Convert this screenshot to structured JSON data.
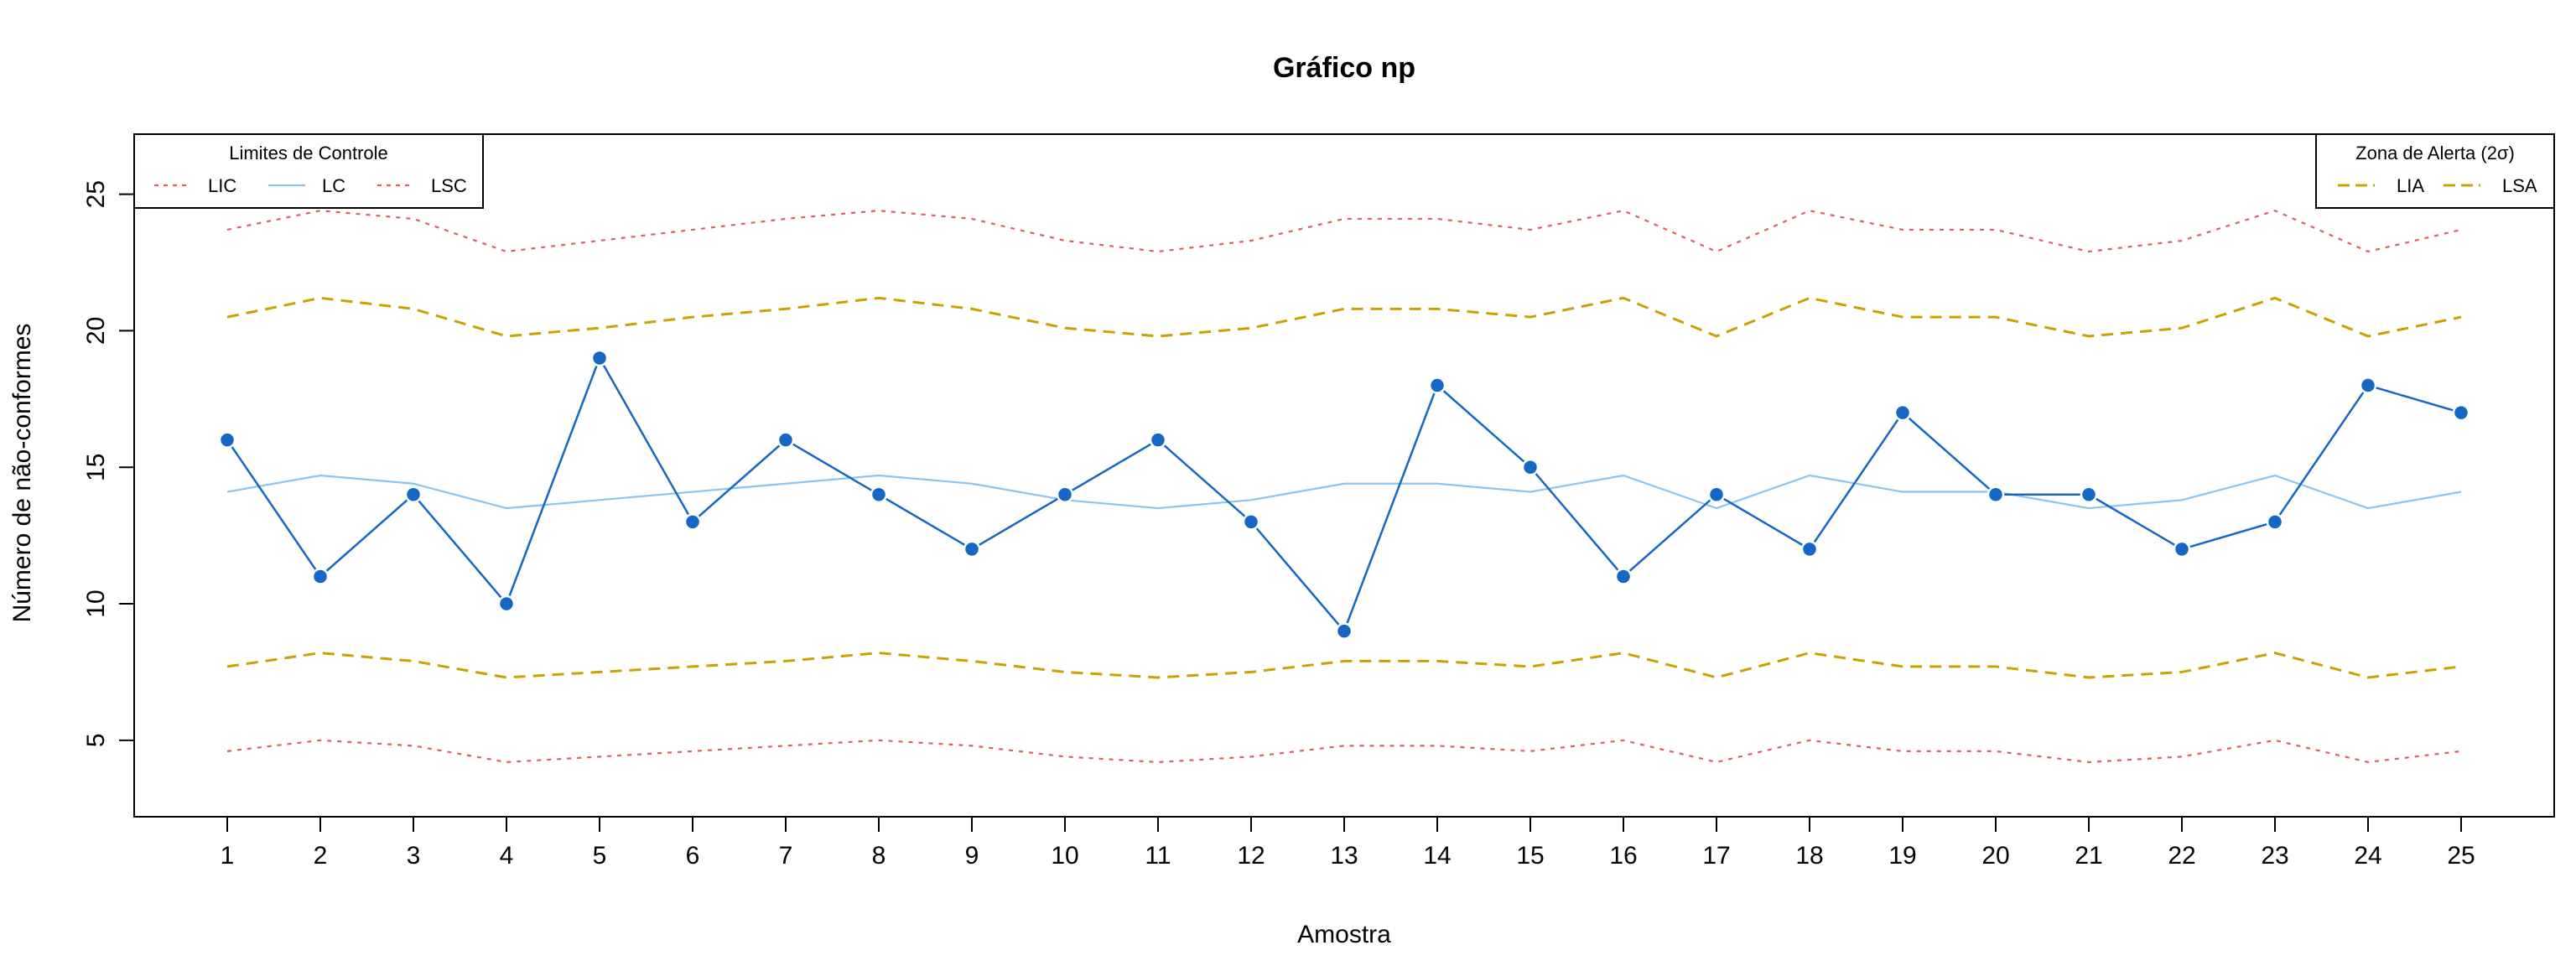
{
  "chart_data": {
    "type": "line",
    "title": "Gráfico np",
    "xlabel": "Amostra",
    "ylabel": "Número de não-conformes",
    "xlim": [
      0,
      26
    ],
    "ylim": [
      2.2,
      27.2
    ],
    "x": [
      1,
      2,
      3,
      4,
      5,
      6,
      7,
      8,
      9,
      10,
      11,
      12,
      13,
      14,
      15,
      16,
      17,
      18,
      19,
      20,
      21,
      22,
      23,
      24,
      25
    ],
    "xticks": [
      "1",
      "2",
      "3",
      "4",
      "5",
      "6",
      "7",
      "8",
      "9",
      "10",
      "11",
      "12",
      "13",
      "14",
      "15",
      "16",
      "17",
      "18",
      "19",
      "20",
      "21",
      "22",
      "23",
      "24",
      "25"
    ],
    "yticks": [
      5,
      10,
      15,
      20,
      25
    ],
    "grid": false,
    "series": [
      {
        "name": "LSC",
        "style": "dotted",
        "color": "#d9625e",
        "values": [
          23.7,
          24.4,
          24.1,
          22.9,
          23.3,
          23.7,
          24.1,
          24.4,
          24.1,
          23.3,
          22.9,
          23.3,
          24.1,
          24.1,
          23.7,
          24.4,
          22.9,
          24.4,
          23.7,
          23.7,
          22.9,
          23.3,
          24.4,
          22.9,
          23.7
        ]
      },
      {
        "name": "LSA",
        "style": "dashed",
        "color": "#c9a200",
        "values": [
          20.5,
          21.2,
          20.8,
          19.8,
          20.1,
          20.5,
          20.8,
          21.2,
          20.8,
          20.1,
          19.8,
          20.1,
          20.8,
          20.8,
          20.5,
          21.2,
          19.8,
          21.2,
          20.5,
          20.5,
          19.8,
          20.1,
          21.2,
          19.8,
          20.5
        ]
      },
      {
        "name": "LC",
        "style": "solid",
        "color": "#8cc4f0",
        "values": [
          14.1,
          14.7,
          14.4,
          13.5,
          13.8,
          14.1,
          14.4,
          14.7,
          14.4,
          13.8,
          13.5,
          13.8,
          14.4,
          14.4,
          14.1,
          14.7,
          13.5,
          14.7,
          14.1,
          14.1,
          13.5,
          13.8,
          14.7,
          13.5,
          14.1
        ]
      },
      {
        "name": "LIA",
        "style": "dashed",
        "color": "#c9a200",
        "values": [
          7.7,
          8.2,
          7.9,
          7.3,
          7.5,
          7.7,
          7.9,
          8.2,
          7.9,
          7.5,
          7.3,
          7.5,
          7.9,
          7.9,
          7.7,
          8.2,
          7.3,
          8.2,
          7.7,
          7.7,
          7.3,
          7.5,
          8.2,
          7.3,
          7.7
        ]
      },
      {
        "name": "LIC",
        "style": "dotted",
        "color": "#d9625e",
        "values": [
          4.6,
          5.0,
          4.8,
          4.2,
          4.4,
          4.6,
          4.8,
          5.0,
          4.8,
          4.4,
          4.2,
          4.4,
          4.8,
          4.8,
          4.6,
          5.0,
          4.2,
          5.0,
          4.6,
          4.6,
          4.2,
          4.4,
          5.0,
          4.2,
          4.6
        ]
      },
      {
        "name": "",
        "style": "solid-points",
        "color": "#1667c3",
        "values": [
          16,
          11,
          14,
          10,
          19,
          13,
          16,
          14,
          12,
          14,
          16,
          13,
          9,
          18,
          15,
          11,
          14,
          12,
          17,
          14,
          14,
          12,
          13,
          18,
          17
        ]
      }
    ],
    "legends": [
      {
        "title": "Limites de Controle",
        "position": "top-left",
        "entries": [
          {
            "label": "LIC",
            "style": "dotted",
            "color": "#d9625e"
          },
          {
            "label": "LC",
            "style": "solid",
            "color": "#8cc4f0"
          },
          {
            "label": "LSC",
            "style": "dotted",
            "color": "#d9625e"
          }
        ]
      },
      {
        "title": "Zona de Alerta (2σ)",
        "position": "top-right",
        "entries": [
          {
            "label": "LIA",
            "style": "dashed",
            "color": "#c9a200"
          },
          {
            "label": "LSA",
            "style": "dashed",
            "color": "#c9a200"
          }
        ]
      }
    ]
  }
}
